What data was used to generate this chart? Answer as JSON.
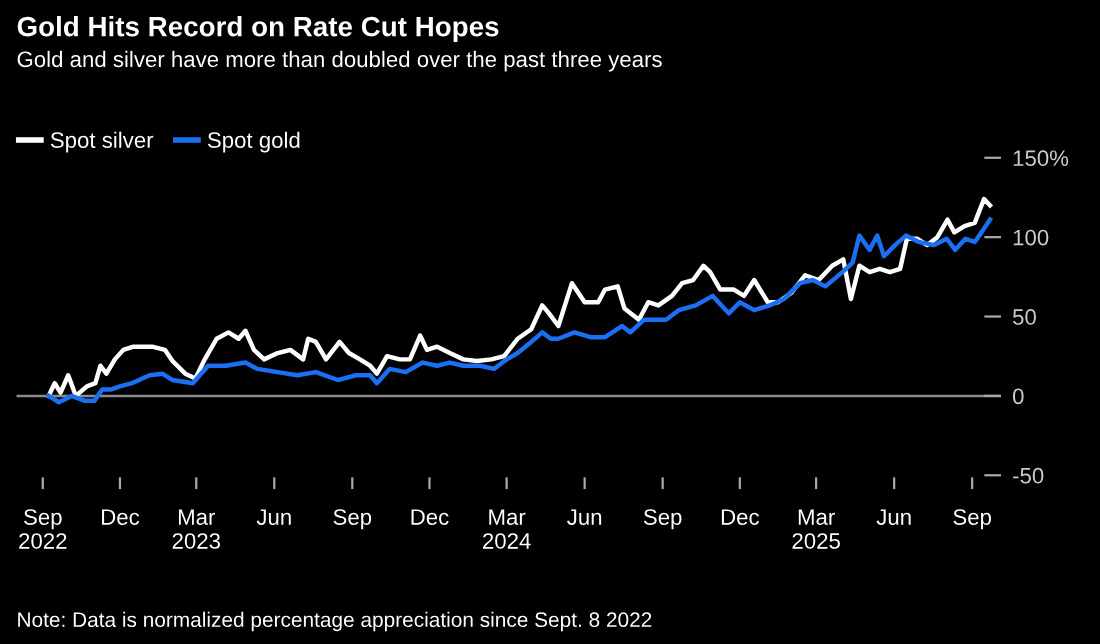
{
  "chart_data": {
    "type": "line",
    "title": "Gold Hits Record on Rate Cut Hopes",
    "subtitle": "Gold and silver have more than doubled over the past three years",
    "annotations": [
      "Note: Data is normalized percentage appreciation since Sept. 8 2022"
    ],
    "series": [
      {
        "name": "Spot silver",
        "color": "#ffffff",
        "x": [
          "2022-09-08",
          "2022-09-15",
          "2022-09-22",
          "2022-10-01",
          "2022-10-10",
          "2022-10-23",
          "2022-11-02",
          "2022-11-08",
          "2022-11-15",
          "2022-11-25",
          "2022-12-05",
          "2022-12-17",
          "2023-01-08",
          "2023-01-23",
          "2023-02-01",
          "2023-02-16",
          "2023-02-28",
          "2023-03-10",
          "2023-03-25",
          "2023-04-08",
          "2023-04-20",
          "2023-04-28",
          "2023-05-08",
          "2023-05-20",
          "2023-06-05",
          "2023-06-20",
          "2023-07-05",
          "2023-07-11",
          "2023-07-20",
          "2023-08-01",
          "2023-08-17",
          "2023-08-28",
          "2023-09-10",
          "2023-09-22",
          "2023-09-30",
          "2023-10-12",
          "2023-10-27",
          "2023-11-08",
          "2023-11-20",
          "2023-11-28",
          "2023-12-10",
          "2023-12-25",
          "2024-01-10",
          "2024-01-26",
          "2024-02-12",
          "2024-02-27",
          "2024-03-14",
          "2024-03-30",
          "2024-04-12",
          "2024-04-20",
          "2024-05-01",
          "2024-05-17",
          "2024-06-01",
          "2024-06-17",
          "2024-06-25",
          "2024-07-10",
          "2024-07-18",
          "2024-08-04",
          "2024-08-15",
          "2024-08-27",
          "2024-09-12",
          "2024-09-24",
          "2024-10-07",
          "2024-10-19",
          "2024-10-27",
          "2024-11-08",
          "2024-11-24",
          "2024-12-06",
          "2024-12-18",
          "2025-01-03",
          "2025-01-15",
          "2025-01-31",
          "2025-02-16",
          "2025-03-04",
          "2025-03-20",
          "2025-04-02",
          "2025-04-11",
          "2025-04-21",
          "2025-05-03",
          "2025-05-15",
          "2025-05-27",
          "2025-06-08",
          "2025-06-16",
          "2025-06-28",
          "2025-07-10",
          "2025-07-22",
          "2025-08-03",
          "2025-08-11",
          "2025-08-23",
          "2025-09-04",
          "2025-09-15",
          "2025-09-22"
        ],
        "values": [
          0,
          8,
          2,
          13,
          0,
          6,
          8,
          19,
          14,
          23,
          29,
          31,
          31,
          29,
          22,
          14,
          11,
          22,
          36,
          40,
          36,
          41,
          29,
          23,
          27,
          29,
          23,
          36,
          34,
          23,
          34,
          27,
          23,
          19,
          14,
          25,
          23,
          23,
          38,
          29,
          31,
          27,
          23,
          22,
          23,
          25,
          36,
          42,
          57,
          52,
          44,
          71,
          59,
          59,
          67,
          69,
          55,
          48,
          59,
          57,
          63,
          71,
          73,
          82,
          78,
          67,
          67,
          63,
          73,
          59,
          59,
          65,
          76,
          73,
          82,
          86,
          61,
          82,
          78,
          80,
          78,
          80,
          99,
          99,
          95,
          100,
          111,
          103,
          107,
          109,
          124,
          120
        ]
      },
      {
        "name": "Spot gold",
        "color": "#1a6ff2",
        "x": [
          "2022-09-08",
          "2022-09-20",
          "2022-10-05",
          "2022-10-20",
          "2022-11-01",
          "2022-11-10",
          "2022-11-20",
          "2022-12-01",
          "2022-12-15",
          "2023-01-05",
          "2023-01-20",
          "2023-02-01",
          "2023-02-25",
          "2023-03-05",
          "2023-03-15",
          "2023-04-05",
          "2023-04-28",
          "2023-05-12",
          "2023-06-05",
          "2023-06-28",
          "2023-07-20",
          "2023-08-15",
          "2023-09-05",
          "2023-09-22",
          "2023-09-30",
          "2023-10-15",
          "2023-11-03",
          "2023-11-23",
          "2023-12-10",
          "2023-12-25",
          "2024-01-10",
          "2024-01-30",
          "2024-02-15",
          "2024-03-01",
          "2024-03-14",
          "2024-03-30",
          "2024-04-12",
          "2024-04-22",
          "2024-05-01",
          "2024-05-20",
          "2024-06-08",
          "2024-06-25",
          "2024-07-15",
          "2024-07-25",
          "2024-08-10",
          "2024-09-05",
          "2024-09-20",
          "2024-10-10",
          "2024-10-30",
          "2024-11-18",
          "2024-12-01",
          "2024-12-18",
          "2025-01-05",
          "2025-01-22",
          "2025-02-10",
          "2025-02-25",
          "2025-03-12",
          "2025-04-01",
          "2025-04-13",
          "2025-04-21",
          "2025-05-03",
          "2025-05-12",
          "2025-05-20",
          "2025-06-02",
          "2025-06-15",
          "2025-06-30",
          "2025-07-18",
          "2025-08-02",
          "2025-08-12",
          "2025-08-24",
          "2025-09-04",
          "2025-09-12",
          "2025-09-22"
        ],
        "values": [
          0,
          -4,
          0,
          -3,
          -3,
          4,
          4,
          6,
          8,
          13,
          14,
          10,
          8,
          13,
          19,
          19,
          21,
          17,
          15,
          13,
          15,
          10,
          13,
          13,
          8,
          17,
          15,
          21,
          19,
          21,
          19,
          19,
          17,
          23,
          27,
          34,
          40,
          36,
          36,
          40,
          37,
          37,
          44,
          40,
          48,
          48,
          54,
          57,
          63,
          52,
          59,
          54,
          57,
          61,
          71,
          73,
          69,
          78,
          84,
          101,
          92,
          101,
          88,
          95,
          101,
          97,
          95,
          99,
          92,
          99,
          97,
          103,
          111
        ]
      }
    ],
    "xlim": [
      "2022-08-01",
      "2025-10-05"
    ],
    "xticks": [
      {
        "value": "2022-09-01",
        "label": "Sep\n2022"
      },
      {
        "value": "2022-12-01",
        "label": "Dec"
      },
      {
        "value": "2023-03-01",
        "label": "Mar\n2023"
      },
      {
        "value": "2023-06-01",
        "label": "Jun"
      },
      {
        "value": "2023-09-01",
        "label": "Sep"
      },
      {
        "value": "2023-12-01",
        "label": "Dec"
      },
      {
        "value": "2024-03-01",
        "label": "Mar\n2024"
      },
      {
        "value": "2024-06-01",
        "label": "Jun"
      },
      {
        "value": "2024-09-01",
        "label": "Sep"
      },
      {
        "value": "2024-12-01",
        "label": "Dec"
      },
      {
        "value": "2025-03-01",
        "label": "Mar\n2025"
      },
      {
        "value": "2025-06-01",
        "label": "Jun"
      },
      {
        "value": "2025-09-01",
        "label": "Sep"
      }
    ],
    "ylim": [
      -50,
      150
    ],
    "yticks": [
      -50,
      0,
      50,
      100,
      {
        "value": 150,
        "label": "150%"
      }
    ],
    "ref_lines": [
      {
        "axis": "y",
        "value": 0,
        "color": "#8c8c8c"
      }
    ],
    "grid": false,
    "legend": "top left",
    "marker": "none",
    "line_style": "solid"
  }
}
